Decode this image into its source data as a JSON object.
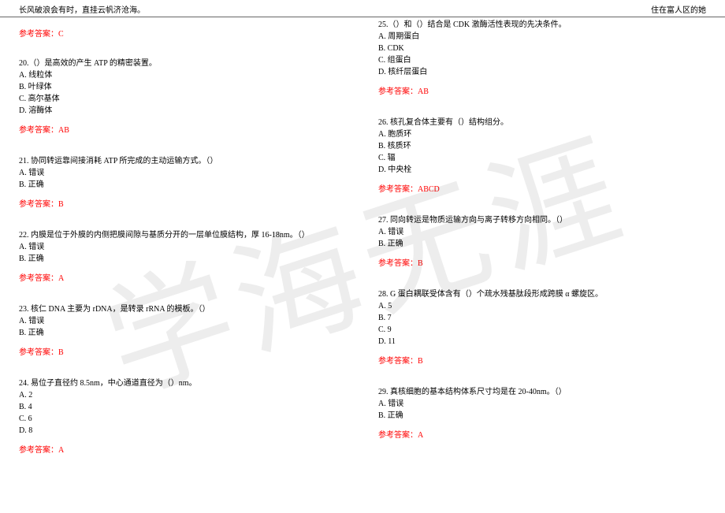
{
  "header": {
    "left": "长风破浪会有时，直挂云帆济沧海。",
    "right": "住在富人区的她"
  },
  "watermark": "学海无涯",
  "left_top_answer": "参考答案：C",
  "left": [
    {
      "q": "20.（）是高效的产生 ATP 的精密装置。",
      "opts": [
        "A. 线粒体",
        "B. 叶绿体",
        "C. 高尔基体",
        "D. 溶酶体"
      ],
      "ans": "参考答案：AB"
    },
    {
      "q": "21. 协同转运靠间接消耗 ATP 所完成的主动运输方式。（）",
      "opts": [
        "A. 错误",
        "B. 正确"
      ],
      "ans": "参考答案：B"
    },
    {
      "q": "22. 内膜是位于外膜的内侧把膜间隙与基质分开的一层单位膜结构，厚 16-18nm。（）",
      "opts": [
        "A. 错误",
        "B. 正确"
      ],
      "ans": "参考答案：A"
    },
    {
      "q": "23. 核仁 DNA 主要为 rDNA，是转录 rRNA 的模板。（）",
      "opts": [
        "A. 错误",
        "B. 正确"
      ],
      "ans": "参考答案：B"
    },
    {
      "q": "24. 易位子直径约 8.5nm，中心通道直径为（）nm。",
      "opts": [
        "A. 2",
        "B. 4",
        "C. 6",
        "D. 8"
      ],
      "ans": "参考答案：A"
    }
  ],
  "right": [
    {
      "q": "25.（）和（）结合是 CDK 激酶活性表现的先决条件。",
      "opts": [
        "A. 周期蛋白",
        "B. CDK",
        "C. 组蛋白",
        "D. 核纤层蛋白"
      ],
      "ans": "参考答案：AB"
    },
    {
      "q": "26. 核孔复合体主要有（）结构组分。",
      "opts": [
        "A. 胞质环",
        "B. 核质环",
        "C. 辐",
        "D. 中央栓"
      ],
      "ans": "参考答案：ABCD"
    },
    {
      "q": "27. 同向转运是物质运输方向与离子转移方向相同。（）",
      "opts": [
        "A. 错误",
        "B. 正确"
      ],
      "ans": "参考答案：B"
    },
    {
      "q": "28. G 蛋白耦联受体含有（）个疏水残基肽段形成跨膜 α 螺旋区。",
      "opts": [
        "A. 5",
        "B. 7",
        "C. 9",
        "D. 11"
      ],
      "ans": "参考答案：B"
    },
    {
      "q": "29. 真核细胞的基本结构体系尺寸均是在 20-40nm。（）",
      "opts": [
        "A. 错误",
        "B. 正确"
      ],
      "ans": "参考答案：A"
    }
  ]
}
